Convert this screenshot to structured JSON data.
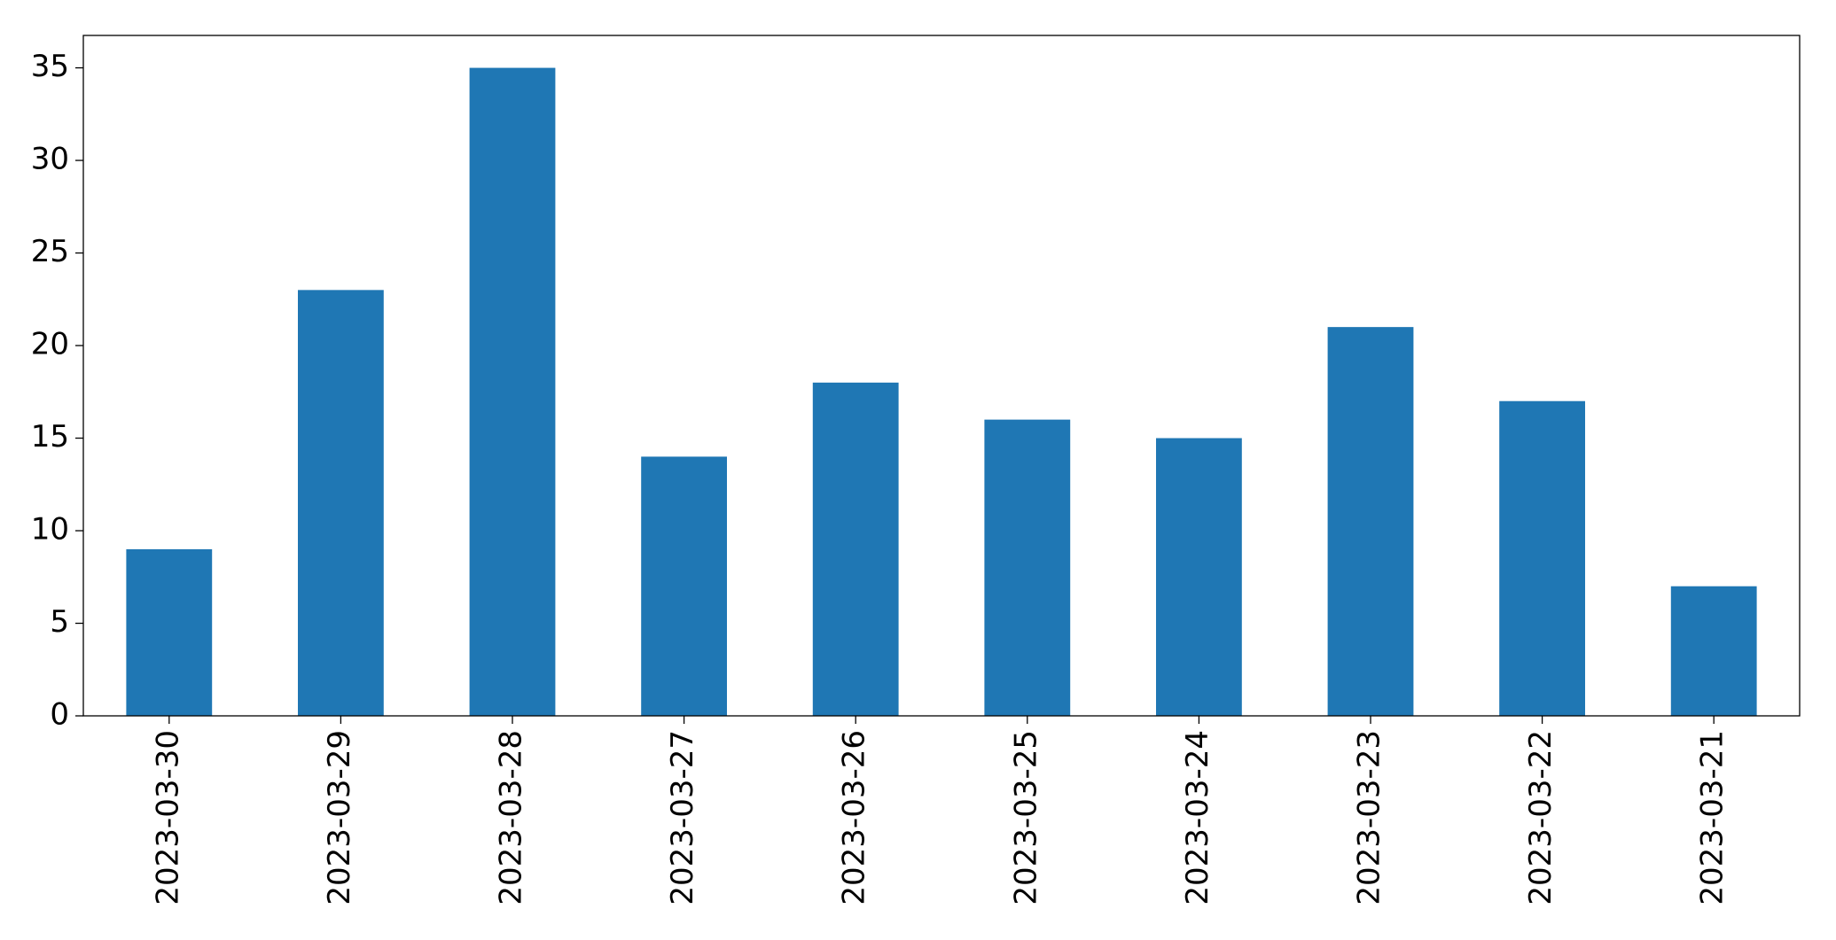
{
  "chart_data": {
    "type": "bar",
    "categories": [
      "2023-03-30",
      "2023-03-29",
      "2023-03-28",
      "2023-03-27",
      "2023-03-26",
      "2023-03-25",
      "2023-03-24",
      "2023-03-23",
      "2023-03-22",
      "2023-03-21"
    ],
    "values": [
      9,
      23,
      35,
      14,
      18,
      16,
      15,
      21,
      17,
      7
    ],
    "color": "#1f77b4",
    "ylim": [
      0,
      36.75
    ],
    "yticks": [
      0,
      5,
      10,
      15,
      20,
      25,
      30,
      35
    ],
    "grid": false
  }
}
